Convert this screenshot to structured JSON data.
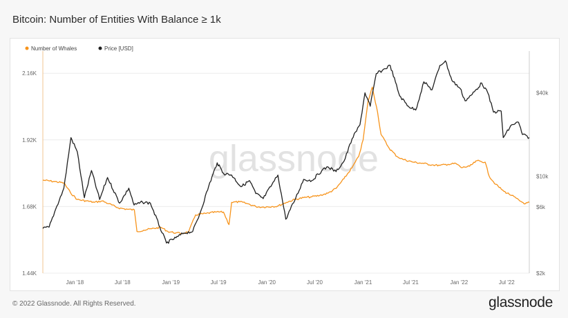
{
  "page": {
    "title": "Bitcoin: Number of Entities With Balance ≥ 1k",
    "copyright": "© 2022 Glassnode. All Rights Reserved.",
    "brand": "glassnode",
    "watermark": "glassnode"
  },
  "colors": {
    "whales": "#f7931a",
    "price": "#1f1f1f",
    "grid": "#ececec"
  },
  "chart_data": {
    "type": "line",
    "title": "Bitcoin: Number of Entities With Balance ≥ 1k",
    "x_ticks": [
      "Jan '18",
      "Jul '18",
      "Jan '19",
      "Jul '19",
      "Jan '20",
      "Jul '20",
      "Jan '21",
      "Jul '21",
      "Jan '22",
      "Jul '22"
    ],
    "x_tick_dates": [
      "2018-01-01",
      "2018-07-01",
      "2019-01-01",
      "2019-07-01",
      "2020-01-01",
      "2020-07-01",
      "2021-01-01",
      "2021-07-01",
      "2022-01-01",
      "2022-07-01"
    ],
    "x_range": [
      "2017-09-01",
      "2022-09-25"
    ],
    "left_axis": {
      "ticks": [
        "1.44K",
        "1.68K",
        "1.92K",
        "2.16K"
      ],
      "tick_values": [
        1440,
        1680,
        1920,
        2160
      ],
      "range": [
        1440,
        2240
      ]
    },
    "right_axis": {
      "scale": "log",
      "ticks": [
        "$2k",
        "$6k",
        "$10k",
        "$40k"
      ],
      "tick_values": [
        2000,
        6000,
        10000,
        40000
      ],
      "range": [
        2000,
        80000
      ]
    },
    "grid": true,
    "legend_position": "top-left",
    "series": [
      {
        "name": "Number of Whales",
        "axis": "left",
        "points": [
          [
            "2017-09-01",
            1775
          ],
          [
            "2017-10-15",
            1770
          ],
          [
            "2017-11-20",
            1765
          ],
          [
            "2017-12-15",
            1730
          ],
          [
            "2018-01-10",
            1705
          ],
          [
            "2018-02-15",
            1700
          ],
          [
            "2018-03-15",
            1695
          ],
          [
            "2018-04-15",
            1700
          ],
          [
            "2018-05-10",
            1690
          ],
          [
            "2018-06-15",
            1675
          ],
          [
            "2018-07-20",
            1670
          ],
          [
            "2018-08-15",
            1668
          ],
          [
            "2018-08-25",
            1590
          ],
          [
            "2018-09-20",
            1595
          ],
          [
            "2018-10-20",
            1600
          ],
          [
            "2018-11-25",
            1605
          ],
          [
            "2018-12-20",
            1590
          ],
          [
            "2019-01-20",
            1585
          ],
          [
            "2019-02-15",
            1583
          ],
          [
            "2019-03-10",
            1590
          ],
          [
            "2019-04-05",
            1650
          ],
          [
            "2019-05-15",
            1655
          ],
          [
            "2019-06-20",
            1660
          ],
          [
            "2019-07-20",
            1660
          ],
          [
            "2019-08-10",
            1615
          ],
          [
            "2019-08-20",
            1695
          ],
          [
            "2019-09-20",
            1697
          ],
          [
            "2019-10-20",
            1690
          ],
          [
            "2019-11-20",
            1680
          ],
          [
            "2019-12-15",
            1678
          ],
          [
            "2020-01-20",
            1680
          ],
          [
            "2020-02-10",
            1681
          ],
          [
            "2020-03-15",
            1695
          ],
          [
            "2020-04-15",
            1705
          ],
          [
            "2020-05-20",
            1712
          ],
          [
            "2020-06-20",
            1715
          ],
          [
            "2020-07-20",
            1720
          ],
          [
            "2020-08-20",
            1728
          ],
          [
            "2020-09-20",
            1745
          ],
          [
            "2020-10-20",
            1780
          ],
          [
            "2020-11-20",
            1820
          ],
          [
            "2020-12-15",
            1860
          ],
          [
            "2021-01-01",
            1920
          ],
          [
            "2021-01-20",
            2060
          ],
          [
            "2021-02-05",
            2110
          ],
          [
            "2021-02-25",
            2020
          ],
          [
            "2021-03-10",
            1940
          ],
          [
            "2021-04-10",
            1890
          ],
          [
            "2021-05-10",
            1860
          ],
          [
            "2021-06-01",
            1850
          ],
          [
            "2021-07-10",
            1840
          ],
          [
            "2021-08-20",
            1835
          ],
          [
            "2021-09-20",
            1830
          ],
          [
            "2021-10-20",
            1828
          ],
          [
            "2021-11-20",
            1832
          ],
          [
            "2021-12-20",
            1835
          ],
          [
            "2022-01-10",
            1820
          ],
          [
            "2022-02-10",
            1825
          ],
          [
            "2022-03-10",
            1845
          ],
          [
            "2022-04-10",
            1840
          ],
          [
            "2022-04-25",
            1790
          ],
          [
            "2022-05-20",
            1760
          ],
          [
            "2022-06-20",
            1735
          ],
          [
            "2022-07-20",
            1720
          ],
          [
            "2022-08-20",
            1700
          ],
          [
            "2022-09-10",
            1690
          ],
          [
            "2022-09-25",
            1695
          ]
        ]
      },
      {
        "name": "Price [USD]",
        "axis": "right",
        "points": [
          [
            "2017-09-01",
            4200
          ],
          [
            "2017-09-25",
            4300
          ],
          [
            "2017-10-20",
            5800
          ],
          [
            "2017-11-20",
            8200
          ],
          [
            "2017-12-17",
            19000
          ],
          [
            "2018-01-10",
            15000
          ],
          [
            "2018-02-06",
            7000
          ],
          [
            "2018-03-05",
            11000
          ],
          [
            "2018-04-05",
            6800
          ],
          [
            "2018-05-05",
            9800
          ],
          [
            "2018-06-20",
            6400
          ],
          [
            "2018-07-25",
            8200
          ],
          [
            "2018-08-14",
            6200
          ],
          [
            "2018-09-15",
            6500
          ],
          [
            "2018-10-15",
            6400
          ],
          [
            "2018-11-20",
            4300
          ],
          [
            "2018-12-15",
            3300
          ],
          [
            "2019-01-20",
            3600
          ],
          [
            "2019-02-20",
            3900
          ],
          [
            "2019-03-25",
            4000
          ],
          [
            "2019-04-20",
            5300
          ],
          [
            "2019-05-25",
            8500
          ],
          [
            "2019-06-26",
            12500
          ],
          [
            "2019-07-20",
            10500
          ],
          [
            "2019-08-20",
            10200
          ],
          [
            "2019-09-25",
            8400
          ],
          [
            "2019-10-27",
            9300
          ],
          [
            "2019-11-20",
            7500
          ],
          [
            "2019-12-18",
            6900
          ],
          [
            "2020-01-20",
            8700
          ],
          [
            "2020-02-12",
            10200
          ],
          [
            "2020-03-13",
            4900
          ],
          [
            "2020-04-20",
            7000
          ],
          [
            "2020-05-20",
            9500
          ],
          [
            "2020-06-20",
            9300
          ],
          [
            "2020-07-28",
            11000
          ],
          [
            "2020-08-20",
            11700
          ],
          [
            "2020-09-20",
            10800
          ],
          [
            "2020-10-21",
            12900
          ],
          [
            "2020-11-20",
            18600
          ],
          [
            "2020-12-20",
            23500
          ],
          [
            "2021-01-08",
            40000
          ],
          [
            "2021-01-28",
            32000
          ],
          [
            "2021-02-20",
            55000
          ],
          [
            "2021-03-15",
            58000
          ],
          [
            "2021-04-14",
            63000
          ],
          [
            "2021-05-20",
            38000
          ],
          [
            "2021-06-22",
            32000
          ],
          [
            "2021-07-20",
            30000
          ],
          [
            "2021-08-20",
            48000
          ],
          [
            "2021-09-20",
            42000
          ],
          [
            "2021-10-20",
            63000
          ],
          [
            "2021-11-10",
            68000
          ],
          [
            "2021-12-05",
            49000
          ],
          [
            "2022-01-05",
            43000
          ],
          [
            "2022-01-24",
            35000
          ],
          [
            "2022-02-20",
            39000
          ],
          [
            "2022-03-28",
            47000
          ],
          [
            "2022-04-20",
            40000
          ],
          [
            "2022-05-12",
            29000
          ],
          [
            "2022-06-10",
            29500
          ],
          [
            "2022-06-18",
            19000
          ],
          [
            "2022-07-20",
            23500
          ],
          [
            "2022-08-15",
            24500
          ],
          [
            "2022-08-30",
            20000
          ],
          [
            "2022-09-25",
            19000
          ]
        ]
      }
    ]
  }
}
